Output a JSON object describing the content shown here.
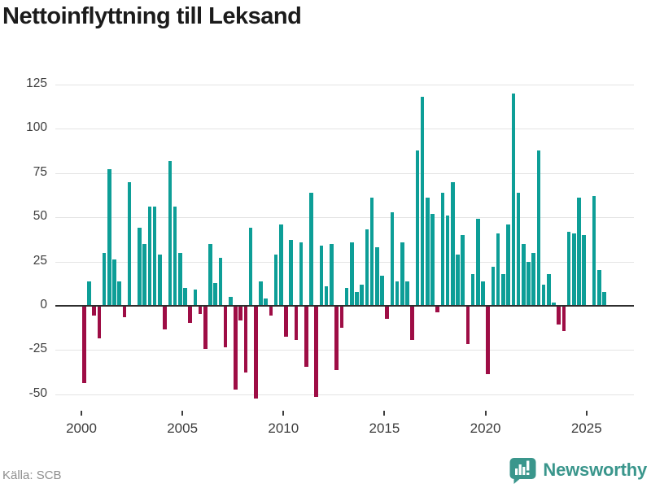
{
  "title": "Nettoinflyttning till Leksand",
  "source": "Källa: SCB",
  "branding": {
    "name": "Newsworthy"
  },
  "colors": {
    "positive_bar": "#0d9e97",
    "negative_bar": "#9e0d45",
    "grid": "#e4e4e4",
    "zero_axis": "#2e2e2e",
    "tick_text": "#3d3d3d",
    "title_text": "#1b1b1b",
    "source_text": "#8e8e8e",
    "brand_teal": "#3a968c"
  },
  "chart_data": {
    "type": "bar",
    "title": "Nettoinflyttning till Leksand",
    "xlabel": "",
    "ylabel": "",
    "x_unit": "quarter",
    "ylim": [
      -50,
      125
    ],
    "yticks": [
      125,
      100,
      75,
      50,
      25,
      0,
      -25,
      -50
    ],
    "xticks": [
      "2000",
      "2005",
      "2010",
      "2015",
      "2020",
      "2025"
    ],
    "grid": true,
    "legend": "none",
    "categories": [
      "2000Q1",
      "2000Q2",
      "2000Q3",
      "2000Q4",
      "2001Q1",
      "2001Q2",
      "2001Q3",
      "2001Q4",
      "2002Q1",
      "2002Q2",
      "2002Q3",
      "2002Q4",
      "2003Q1",
      "2003Q2",
      "2003Q3",
      "2003Q4",
      "2004Q1",
      "2004Q2",
      "2004Q3",
      "2004Q4",
      "2005Q1",
      "2005Q2",
      "2005Q3",
      "2005Q4",
      "2006Q1",
      "2006Q2",
      "2006Q3",
      "2006Q4",
      "2007Q1",
      "2007Q2",
      "2007Q3",
      "2007Q4",
      "2008Q1",
      "2008Q2",
      "2008Q3",
      "2008Q4",
      "2009Q1",
      "2009Q2",
      "2009Q3",
      "2009Q4",
      "2010Q1",
      "2010Q2",
      "2010Q3",
      "2010Q4",
      "2011Q1",
      "2011Q2",
      "2011Q3",
      "2011Q4",
      "2012Q1",
      "2012Q2",
      "2012Q3",
      "2012Q4",
      "2013Q1",
      "2013Q2",
      "2013Q3",
      "2013Q4",
      "2014Q1",
      "2014Q2",
      "2014Q3",
      "2014Q4",
      "2015Q1",
      "2015Q2",
      "2015Q3",
      "2015Q4",
      "2016Q1",
      "2016Q2",
      "2016Q3",
      "2016Q4",
      "2017Q1",
      "2017Q2",
      "2017Q3",
      "2017Q4",
      "2018Q1",
      "2018Q2",
      "2018Q3",
      "2018Q4",
      "2019Q1",
      "2019Q2",
      "2019Q3",
      "2019Q4",
      "2020Q1",
      "2020Q2",
      "2020Q3",
      "2020Q4",
      "2021Q1",
      "2021Q2",
      "2021Q3",
      "2021Q4",
      "2022Q1",
      "2022Q2",
      "2022Q3",
      "2022Q4",
      "2023Q1",
      "2023Q2",
      "2023Q3",
      "2023Q4",
      "2024Q1",
      "2024Q2",
      "2024Q3",
      "2024Q4",
      "2025Q1",
      "2025Q2",
      "2025Q3",
      "2025Q4"
    ],
    "values": [
      -43,
      14,
      -5,
      -18,
      30,
      77,
      26,
      14,
      -6,
      70,
      0,
      44,
      35,
      56,
      56,
      29,
      -13,
      82,
      56,
      30,
      10,
      -9,
      9,
      -4,
      -24,
      35,
      13,
      27,
      -23,
      5,
      -47,
      -8,
      -37,
      44,
      -52,
      14,
      4,
      -5,
      29,
      46,
      -17,
      37,
      -19,
      36,
      -34,
      64,
      -51,
      34,
      11,
      35,
      -36,
      -12,
      10,
      36,
      8,
      12,
      43,
      61,
      33,
      17,
      -7,
      53,
      14,
      36,
      14,
      -19,
      88,
      118,
      61,
      52,
      -3,
      64,
      51,
      70,
      29,
      40,
      -21,
      18,
      49,
      14,
      -38,
      22,
      41,
      18,
      46,
      120,
      64,
      35,
      25,
      30,
      88,
      12,
      18,
      2,
      -10,
      -14,
      42,
      41,
      61,
      40,
      0,
      62,
      20,
      8
    ]
  }
}
